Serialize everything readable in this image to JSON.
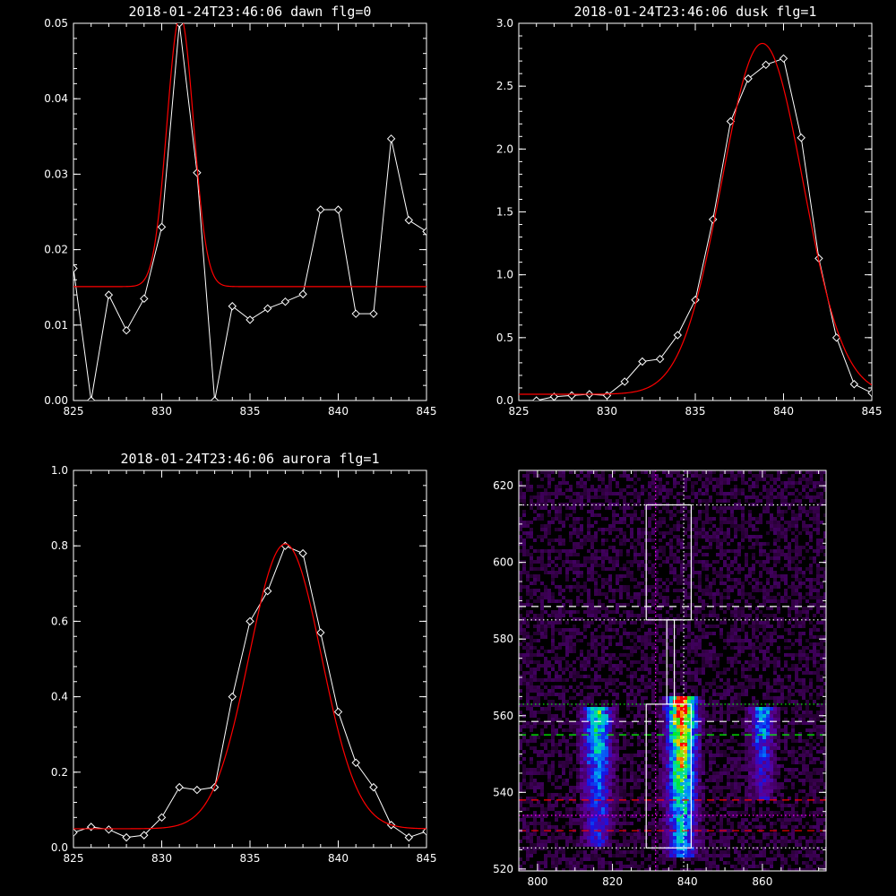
{
  "chart_data": [
    {
      "id": "dawn",
      "type": "line",
      "title": "2018-01-24T23:46:06 dawn flg=0",
      "xlim": [
        825,
        845
      ],
      "ylim": [
        0,
        0.05
      ],
      "xticks": [
        825,
        830,
        835,
        840,
        845
      ],
      "yticks": [
        0.0,
        0.01,
        0.02,
        0.03,
        0.04,
        0.05
      ],
      "yformat": 2,
      "series": [
        {
          "kind": "data",
          "color": "#ffffff",
          "x": [
            825,
            826,
            827,
            828,
            829,
            830,
            831,
            832,
            833,
            834,
            835,
            836,
            837,
            838,
            839,
            840,
            841,
            842,
            843,
            844,
            845
          ],
          "y": [
            0.0175,
            0.0,
            0.014,
            0.0093,
            0.0135,
            0.023,
            0.05,
            0.0302,
            0.0,
            0.0125,
            0.0107,
            0.0122,
            0.0131,
            0.0141,
            0.0253,
            0.0253,
            0.0115,
            0.0115,
            0.0347,
            0.0239,
            0.0224
          ]
        },
        {
          "kind": "fit",
          "color": "#ff0000",
          "gauss": {
            "base": 0.0151,
            "amp": 0.0359,
            "center": 831.05,
            "sigma": 0.75
          }
        }
      ]
    },
    {
      "id": "dusk",
      "type": "line",
      "title": "2018-01-24T23:46:06 dusk flg=1",
      "xlim": [
        825,
        845
      ],
      "ylim": [
        0,
        3.0
      ],
      "xticks": [
        825,
        830,
        835,
        840,
        845
      ],
      "yticks": [
        0.0,
        0.5,
        1.0,
        1.5,
        2.0,
        2.5,
        3.0
      ],
      "yformat": 1,
      "series": [
        {
          "kind": "data",
          "color": "#ffffff",
          "x": [
            826,
            827,
            828,
            829,
            830,
            831,
            832,
            833,
            834,
            835,
            836,
            837,
            838,
            839,
            840,
            841,
            842,
            843,
            844,
            845
          ],
          "y": [
            0.0,
            0.03,
            0.04,
            0.05,
            0.04,
            0.15,
            0.31,
            0.33,
            0.52,
            0.8,
            1.44,
            2.22,
            2.56,
            2.67,
            2.72,
            2.09,
            1.13,
            0.5,
            0.13,
            0.06
          ]
        },
        {
          "kind": "fit",
          "color": "#ff0000",
          "gauss": {
            "base": 0.05,
            "amp": 2.79,
            "center": 838.8,
            "sigma": 2.3
          }
        }
      ]
    },
    {
      "id": "aurora",
      "type": "line",
      "title": "2018-01-24T23:46:06 aurora flg=1",
      "xlim": [
        825,
        845
      ],
      "ylim": [
        0,
        1.0
      ],
      "xticks": [
        825,
        830,
        835,
        840,
        845
      ],
      "yticks": [
        0.0,
        0.2,
        0.4,
        0.6,
        0.8,
        1.0
      ],
      "yformat": 1,
      "series": [
        {
          "kind": "data",
          "color": "#ffffff",
          "x": [
            825,
            826,
            827,
            828,
            829,
            830,
            831,
            832,
            833,
            834,
            835,
            836,
            837,
            838,
            839,
            840,
            841,
            842,
            843,
            844,
            845
          ],
          "y": [
            0.04,
            0.055,
            0.048,
            0.027,
            0.033,
            0.08,
            0.16,
            0.153,
            0.16,
            0.4,
            0.6,
            0.68,
            0.8,
            0.78,
            0.57,
            0.36,
            0.225,
            0.16,
            0.06,
            0.027,
            0.043
          ]
        },
        {
          "kind": "fit",
          "color": "#ff0000",
          "gauss": {
            "base": 0.05,
            "amp": 0.755,
            "center": 837.0,
            "sigma": 2.05
          }
        }
      ]
    },
    {
      "id": "image",
      "type": "heatmap",
      "title": "",
      "xlim": [
        795,
        877
      ],
      "ylim": [
        519.5,
        624
      ],
      "xticks": [
        800,
        820,
        840,
        860
      ],
      "yticks": [
        520,
        540,
        560,
        580,
        600,
        620
      ],
      "yformat": 0,
      "emission_columns": [
        {
          "x_center": 816,
          "width": 9,
          "y_range": [
            528,
            561
          ],
          "peak": 0.6
        },
        {
          "x_center": 838.5,
          "width": 9,
          "y_range": [
            525,
            564
          ],
          "peak": 1.0
        },
        {
          "x_center": 860,
          "width": 8,
          "y_range": [
            540,
            561
          ],
          "peak": 0.45
        }
      ],
      "boxes": [
        {
          "x": [
            829,
            841
          ],
          "y": [
            525.5,
            563
          ]
        },
        {
          "x": [
            829,
            841
          ],
          "y": [
            585,
            615
          ]
        },
        {
          "x": [
            834.5,
            836.5
          ],
          "y": [
            563,
            585
          ]
        }
      ],
      "hlines": [
        {
          "y": 615,
          "color": "#ffffff",
          "style": "dotted"
        },
        {
          "y": 588.5,
          "color": "#ffffff",
          "style": "dashed"
        },
        {
          "y": 585,
          "color": "#ffffff",
          "style": "dotted"
        },
        {
          "y": 563,
          "color": "#00ff00",
          "style": "dotted"
        },
        {
          "y": 558.5,
          "color": "#ffffff",
          "style": "dashed"
        },
        {
          "y": 555,
          "color": "#00ff00",
          "style": "dashed"
        },
        {
          "y": 538,
          "color": "#ff0000",
          "style": "dashed"
        },
        {
          "y": 534,
          "color": "#ff00ff",
          "style": "dotted"
        },
        {
          "y": 530,
          "color": "#ff0000",
          "style": "dashed"
        },
        {
          "y": 525.5,
          "color": "#ffffff",
          "style": "dotted"
        }
      ],
      "vlines": [
        {
          "x": 831.5,
          "color": "#ff00ff",
          "style": "dotted"
        },
        {
          "x": 839,
          "color": "#ffffff",
          "style": "dotted"
        }
      ]
    }
  ]
}
